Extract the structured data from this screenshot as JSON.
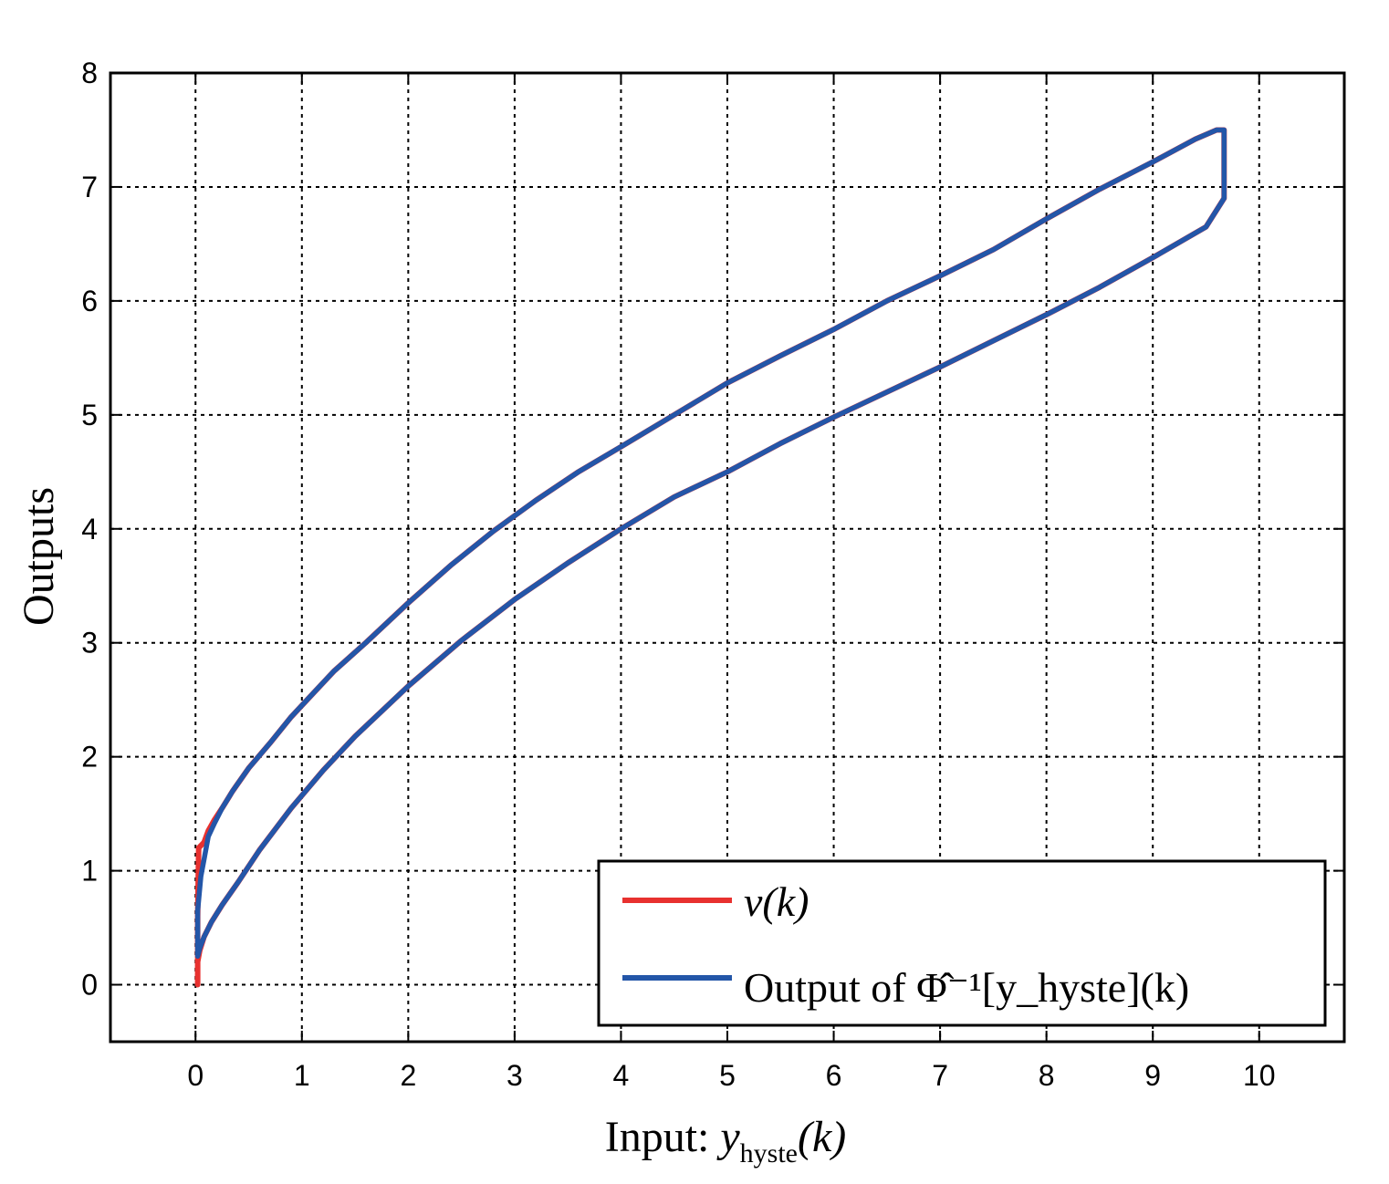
{
  "chart_data": {
    "type": "line",
    "xlabel": "Input: ",
    "xlabel_var": "y",
    "xlabel_sub": "hyste",
    "xlabel_tail": "(k)",
    "ylabel": "Outputs",
    "xlim": [
      -0.8,
      10.8
    ],
    "ylim": [
      -0.5,
      8
    ],
    "xticks": [
      "0",
      "1",
      "2",
      "3",
      "4",
      "5",
      "6",
      "7",
      "8",
      "9",
      "10"
    ],
    "yticks": [
      "0",
      "1",
      "2",
      "3",
      "4",
      "5",
      "6",
      "7",
      "8"
    ],
    "grid": true,
    "legend_position": "bottom-right",
    "series": [
      {
        "name": "v(k)",
        "color": "#e8312f",
        "x": [
          0.02,
          0.02,
          0.03,
          0.05,
          0.08,
          0.12,
          0.18,
          0.25,
          0.35,
          0.5,
          0.7,
          0.9,
          1.1,
          1.3,
          1.6,
          2.0,
          2.4,
          2.8,
          3.2,
          3.6,
          4.0,
          4.5,
          5.0,
          5.5,
          6.0,
          6.5,
          7.0,
          7.5,
          8.0,
          8.5,
          9.0,
          9.4,
          9.6,
          9.67,
          9.67,
          9.5,
          9.0,
          8.5,
          8.0,
          7.5,
          7.0,
          6.5,
          6.0,
          5.5,
          5.0,
          4.5,
          4.0,
          3.5,
          3.0,
          2.5,
          2.0,
          1.5,
          1.2,
          0.9,
          0.6,
          0.4,
          0.25,
          0.15,
          0.08,
          0.04,
          0.02
        ],
        "y": [
          0.0,
          0.6,
          1.2,
          1.22,
          1.25,
          1.35,
          1.45,
          1.55,
          1.7,
          1.9,
          2.12,
          2.35,
          2.55,
          2.75,
          3.0,
          3.35,
          3.68,
          3.98,
          4.25,
          4.5,
          4.72,
          5.0,
          5.28,
          5.52,
          5.75,
          6.0,
          6.22,
          6.45,
          6.72,
          6.98,
          7.22,
          7.42,
          7.5,
          7.5,
          6.9,
          6.65,
          6.38,
          6.12,
          5.88,
          5.65,
          5.42,
          5.2,
          4.98,
          4.75,
          4.5,
          4.28,
          4.0,
          3.7,
          3.38,
          3.02,
          2.62,
          2.18,
          1.88,
          1.55,
          1.18,
          0.9,
          0.7,
          0.55,
          0.42,
          0.3,
          0.2
        ]
      },
      {
        "name": "Output of Φ̂⁻¹[y_hyste](k)",
        "color": "#2356a8",
        "x": [
          0.02,
          0.02,
          0.05,
          0.08,
          0.12,
          0.18,
          0.25,
          0.35,
          0.5,
          0.7,
          0.9,
          1.1,
          1.3,
          1.6,
          2.0,
          2.4,
          2.8,
          3.2,
          3.6,
          4.0,
          4.5,
          5.0,
          5.5,
          6.0,
          6.5,
          7.0,
          7.5,
          8.0,
          8.5,
          9.0,
          9.4,
          9.6,
          9.67,
          9.67,
          9.5,
          9.0,
          8.5,
          8.0,
          7.5,
          7.0,
          6.5,
          6.0,
          5.5,
          5.0,
          4.5,
          4.0,
          3.5,
          3.0,
          2.5,
          2.0,
          1.5,
          1.2,
          0.9,
          0.6,
          0.4,
          0.25,
          0.15,
          0.08,
          0.04,
          0.02
        ],
        "y": [
          0.25,
          0.65,
          0.95,
          1.1,
          1.3,
          1.42,
          1.55,
          1.7,
          1.9,
          2.12,
          2.35,
          2.55,
          2.75,
          3.0,
          3.35,
          3.68,
          3.98,
          4.25,
          4.5,
          4.72,
          5.0,
          5.28,
          5.52,
          5.75,
          6.0,
          6.22,
          6.45,
          6.72,
          6.98,
          7.22,
          7.42,
          7.5,
          7.5,
          6.9,
          6.65,
          6.38,
          6.12,
          5.88,
          5.65,
          5.42,
          5.2,
          4.98,
          4.75,
          4.5,
          4.28,
          4.0,
          3.7,
          3.38,
          3.02,
          2.62,
          2.18,
          1.88,
          1.55,
          1.18,
          0.9,
          0.7,
          0.55,
          0.42,
          0.32,
          0.25
        ]
      }
    ]
  }
}
